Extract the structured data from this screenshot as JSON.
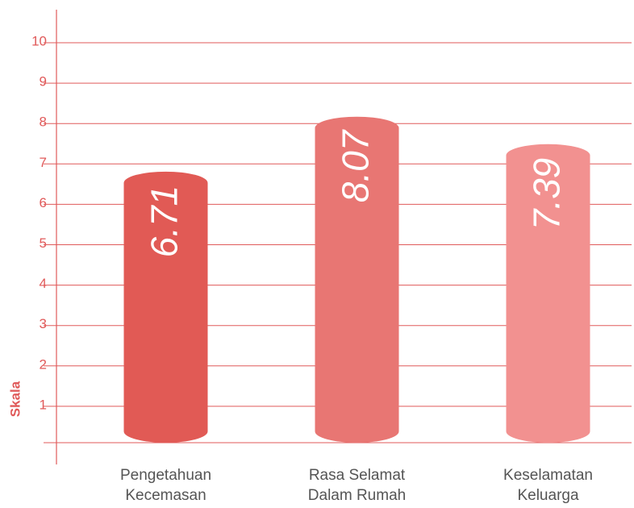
{
  "chart_data": {
    "type": "bar",
    "y_label": "Skala",
    "categories": [
      [
        "Pengetahuan",
        "Kecemasan"
      ],
      [
        "Rasa Selamat",
        "Dalam Rumah"
      ],
      [
        "Keselamatan",
        "Keluarga"
      ]
    ],
    "values": [
      6.71,
      8.07,
      7.39
    ],
    "colors": [
      "#e15a55",
      "#e87673",
      "#f29190"
    ],
    "ylim": [
      0,
      10
    ],
    "yticks": [
      1,
      2,
      3,
      4,
      5,
      6,
      7,
      8,
      9,
      10
    ],
    "grid": true
  }
}
